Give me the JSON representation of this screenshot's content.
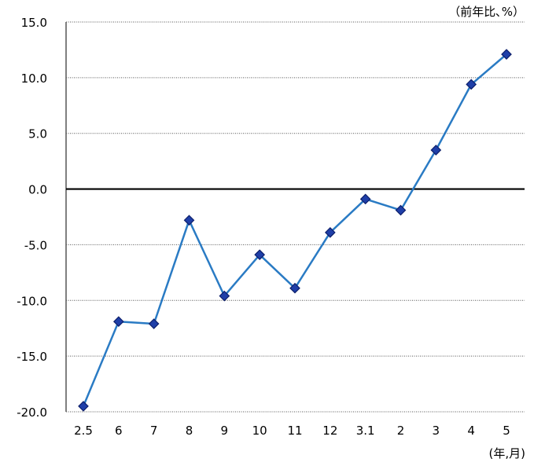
{
  "chart_data": {
    "type": "line",
    "y_unit_label": "（前年比､%）",
    "x_unit_label": "(年,月)",
    "categories": [
      "2.5",
      "6",
      "7",
      "8",
      "9",
      "10",
      "11",
      "12",
      "3.1",
      "2",
      "3",
      "4",
      "5"
    ],
    "series": [
      {
        "values": [
          -19.5,
          -11.9,
          -12.1,
          -2.8,
          -9.6,
          -5.9,
          -8.9,
          -3.9,
          -0.9,
          -1.9,
          3.5,
          9.4,
          12.1
        ]
      }
    ],
    "y_ticks": [
      "15.0",
      "10.0",
      "5.0",
      "0.0",
      "-5.0",
      "-10.0",
      "-15.0",
      "-20.0"
    ],
    "ylim": [
      -20,
      15
    ],
    "grid": "horizontal dotted",
    "zero_line": true,
    "colors": {
      "line": "#2a7bc4",
      "marker_fill": "#1f3fa8",
      "marker_stroke": "#0d1f6b",
      "grid": "#555555"
    }
  }
}
